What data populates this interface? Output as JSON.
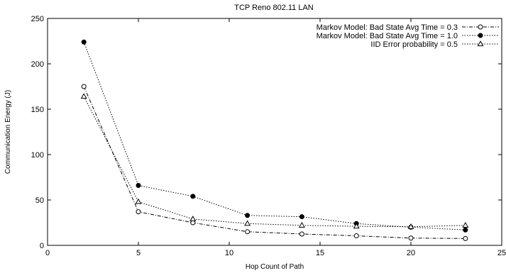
{
  "chart_data": {
    "type": "line",
    "title": "TCP Reno 802.11 LAN",
    "xlabel": "Hop Count of Path",
    "ylabel": "Communication Energy (J)",
    "xlim": [
      0,
      25
    ],
    "ylim": [
      0,
      250
    ],
    "xticks": [
      "0",
      "5",
      "10",
      "15",
      "20",
      "25"
    ],
    "yticks": [
      "0",
      "50",
      "100",
      "150",
      "200",
      "250"
    ],
    "grid": false,
    "legend_position": "top-right",
    "series": [
      {
        "name": "Markov Model: Bad State Avg Time = 0.3",
        "marker": "open-circle",
        "dash": "dash-dot",
        "x": [
          2,
          5,
          8,
          11,
          14,
          17,
          20,
          23
        ],
        "values": [
          175,
          37,
          25,
          15,
          12.5,
          10.5,
          8,
          7.5
        ]
      },
      {
        "name": "Markov Model: Bad State Avg Time = 1.0",
        "marker": "filled-circle",
        "dash": "dotted",
        "x": [
          2,
          5,
          8,
          11,
          14,
          17,
          20,
          23
        ],
        "values": [
          224,
          66,
          54,
          33,
          31.5,
          24,
          20,
          17
        ]
      },
      {
        "name": "IID Error probability = 0.5",
        "marker": "open-triangle",
        "dash": "dotted",
        "x": [
          2,
          5,
          8,
          11,
          14,
          17,
          20,
          23
        ],
        "values": [
          164,
          48,
          29,
          24,
          22,
          21,
          20.5,
          22
        ]
      }
    ]
  }
}
